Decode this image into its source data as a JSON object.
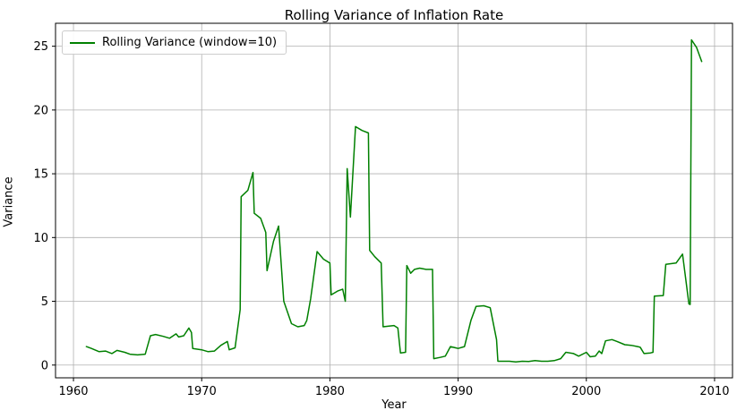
{
  "colors": {
    "line": "#008000",
    "grid": "#b0b0b0",
    "spine": "#000000",
    "background": "#ffffff",
    "legend_border": "#cccccc"
  },
  "chart_data": {
    "type": "line",
    "title": "Rolling Variance of Inflation Rate",
    "xlabel": "Year",
    "ylabel": "Variance",
    "grid": true,
    "legend_position": "upper left",
    "xlim": [
      1958.6,
      2011.4
    ],
    "ylim": [
      -1.0,
      26.8
    ],
    "xticks": [
      1960,
      1970,
      1980,
      1990,
      2000,
      2010
    ],
    "yticks": [
      0,
      5,
      10,
      15,
      20,
      25
    ],
    "series": [
      {
        "name": "Rolling Variance (window=10)",
        "color": "#008000",
        "points": [
          [
            1961.0,
            1.45
          ],
          [
            1961.4,
            1.3
          ],
          [
            1962.0,
            1.05
          ],
          [
            1962.5,
            1.1
          ],
          [
            1963.0,
            0.9
          ],
          [
            1963.4,
            1.15
          ],
          [
            1964.0,
            1.0
          ],
          [
            1964.4,
            0.85
          ],
          [
            1965.0,
            0.8
          ],
          [
            1965.6,
            0.85
          ],
          [
            1966.0,
            2.3
          ],
          [
            1966.4,
            2.4
          ],
          [
            1967.0,
            2.25
          ],
          [
            1967.5,
            2.1
          ],
          [
            1968.0,
            2.45
          ],
          [
            1968.2,
            2.2
          ],
          [
            1968.6,
            2.3
          ],
          [
            1969.0,
            2.9
          ],
          [
            1969.2,
            2.55
          ],
          [
            1969.3,
            1.3
          ],
          [
            1970.0,
            1.2
          ],
          [
            1970.5,
            1.05
          ],
          [
            1971.0,
            1.1
          ],
          [
            1971.5,
            1.55
          ],
          [
            1972.0,
            1.85
          ],
          [
            1972.15,
            1.2
          ],
          [
            1972.6,
            1.35
          ],
          [
            1973.0,
            4.35
          ],
          [
            1973.08,
            13.2
          ],
          [
            1973.6,
            13.7
          ],
          [
            1974.0,
            15.1
          ],
          [
            1974.1,
            11.9
          ],
          [
            1974.6,
            11.5
          ],
          [
            1975.0,
            10.4
          ],
          [
            1975.1,
            7.4
          ],
          [
            1975.6,
            9.7
          ],
          [
            1976.0,
            10.9
          ],
          [
            1976.4,
            5.0
          ],
          [
            1977.0,
            3.25
          ],
          [
            1977.5,
            3.0
          ],
          [
            1978.0,
            3.1
          ],
          [
            1978.2,
            3.5
          ],
          [
            1978.5,
            5.2
          ],
          [
            1979.0,
            8.9
          ],
          [
            1979.5,
            8.3
          ],
          [
            1980.0,
            8.0
          ],
          [
            1980.1,
            5.5
          ],
          [
            1980.6,
            5.8
          ],
          [
            1981.0,
            5.95
          ],
          [
            1981.2,
            5.0
          ],
          [
            1981.35,
            15.4
          ],
          [
            1981.6,
            11.6
          ],
          [
            1982.0,
            18.7
          ],
          [
            1982.5,
            18.4
          ],
          [
            1983.0,
            18.2
          ],
          [
            1983.1,
            9.0
          ],
          [
            1983.5,
            8.5
          ],
          [
            1984.0,
            8.0
          ],
          [
            1984.15,
            3.0
          ],
          [
            1984.6,
            3.05
          ],
          [
            1985.0,
            3.1
          ],
          [
            1985.3,
            2.9
          ],
          [
            1985.5,
            0.95
          ],
          [
            1985.9,
            1.0
          ],
          [
            1986.0,
            7.8
          ],
          [
            1986.3,
            7.2
          ],
          [
            1986.6,
            7.5
          ],
          [
            1987.0,
            7.6
          ],
          [
            1987.5,
            7.5
          ],
          [
            1988.0,
            7.5
          ],
          [
            1988.1,
            0.5
          ],
          [
            1988.6,
            0.6
          ],
          [
            1989.0,
            0.7
          ],
          [
            1989.4,
            1.45
          ],
          [
            1990.0,
            1.3
          ],
          [
            1990.5,
            1.45
          ],
          [
            1991.0,
            3.5
          ],
          [
            1991.4,
            4.6
          ],
          [
            1992.0,
            4.65
          ],
          [
            1992.5,
            4.5
          ],
          [
            1993.0,
            2.0
          ],
          [
            1993.1,
            0.3
          ],
          [
            1994.0,
            0.3
          ],
          [
            1994.5,
            0.25
          ],
          [
            1995.0,
            0.3
          ],
          [
            1995.5,
            0.28
          ],
          [
            1996.0,
            0.35
          ],
          [
            1996.5,
            0.3
          ],
          [
            1997.0,
            0.3
          ],
          [
            1997.5,
            0.35
          ],
          [
            1998.0,
            0.5
          ],
          [
            1998.4,
            1.0
          ],
          [
            1999.0,
            0.9
          ],
          [
            1999.4,
            0.7
          ],
          [
            2000.0,
            1.0
          ],
          [
            2000.3,
            0.65
          ],
          [
            2000.7,
            0.7
          ],
          [
            2001.0,
            1.1
          ],
          [
            2001.2,
            0.9
          ],
          [
            2001.5,
            1.9
          ],
          [
            2002.0,
            2.0
          ],
          [
            2002.4,
            1.85
          ],
          [
            2003.0,
            1.6
          ],
          [
            2003.5,
            1.55
          ],
          [
            2004.0,
            1.45
          ],
          [
            2004.2,
            1.4
          ],
          [
            2004.5,
            0.9
          ],
          [
            2005.0,
            0.95
          ],
          [
            2005.2,
            1.0
          ],
          [
            2005.3,
            5.4
          ],
          [
            2006.0,
            5.45
          ],
          [
            2006.2,
            7.9
          ],
          [
            2007.0,
            8.0
          ],
          [
            2007.5,
            8.7
          ],
          [
            2008.0,
            4.8
          ],
          [
            2008.1,
            4.75
          ],
          [
            2008.2,
            25.5
          ],
          [
            2008.6,
            24.9
          ],
          [
            2009.0,
            23.8
          ]
        ]
      }
    ]
  }
}
